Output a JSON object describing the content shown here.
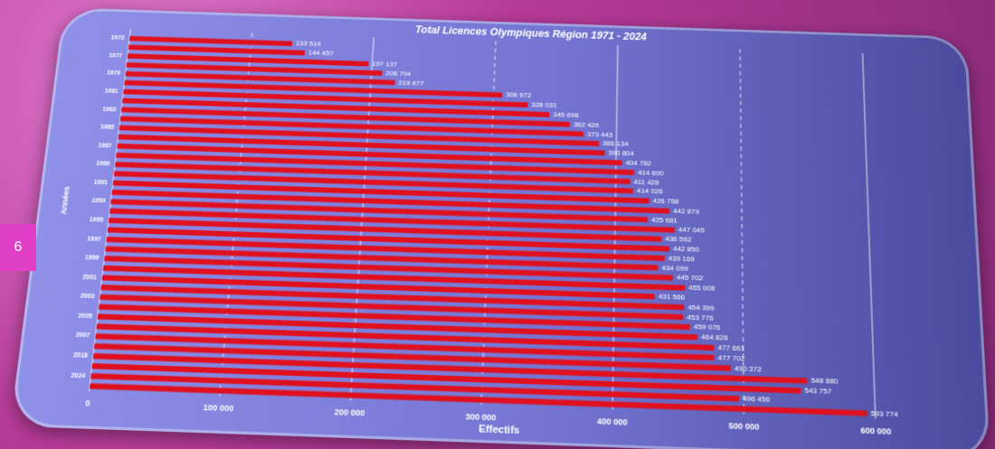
{
  "slide": {
    "page_number": "6"
  },
  "chart_data": {
    "type": "barh",
    "title": "Total Licences Olympiques Région 1971 - 2024",
    "x_label": "Effectifs",
    "y_label": "Années",
    "categories": [
      "1972",
      null,
      "1977",
      null,
      "1979",
      null,
      "1981",
      null,
      "1983",
      null,
      "1985",
      null,
      "1987",
      null,
      "1989",
      null,
      "1991",
      null,
      "1993",
      null,
      "1995",
      null,
      "1997",
      null,
      "1999",
      null,
      "2001",
      null,
      "2003",
      null,
      "2005",
      null,
      "2007",
      null,
      "2018",
      null,
      "2024",
      null
    ],
    "values": [
      133514,
      144457,
      197137,
      208704,
      219477,
      306972,
      328031,
      345698,
      362426,
      373443,
      386134,
      390804,
      404782,
      414600,
      411428,
      414026,
      426758,
      442879,
      425681,
      447045,
      436592,
      442850,
      439169,
      434099,
      445702,
      455008,
      431566,
      454399,
      453776,
      459076,
      464826,
      477661,
      477702,
      490372,
      548880,
      543757,
      496456,
      593774
    ],
    "value_labels": [
      "133 514",
      "144 457",
      "197 137",
      "208 704",
      "219 477",
      "306 972",
      "328 031",
      "345 698",
      "362 426",
      "373 443",
      "386 134",
      "390 804",
      "404 782",
      "414 600",
      "411 428",
      "414 026",
      "426 758",
      "442 879",
      "425 681",
      "447 045",
      "436 592",
      "442 850",
      "439 169",
      "434 099",
      "445 702",
      "455 008",
      "431 566",
      "454 399",
      "453 776",
      "459 076",
      "464 826",
      "477 661",
      "477 702",
      "490 372",
      "548 880",
      "543 757",
      "496 456",
      "593 774"
    ],
    "color": "#e0101e",
    "xlim": [
      0,
      600000
    ],
    "xticks": [
      0,
      {
        "value": 100000,
        "label": "100 000"
      },
      {
        "value": 200000,
        "label": "200 000"
      },
      {
        "value": 300000,
        "label": "300 000"
      },
      {
        "value": 400000,
        "label": "400 000"
      },
      {
        "value": 500000,
        "label": "500 000"
      },
      {
        "value": 600000,
        "label": "600 000"
      }
    ],
    "grid": true
  }
}
